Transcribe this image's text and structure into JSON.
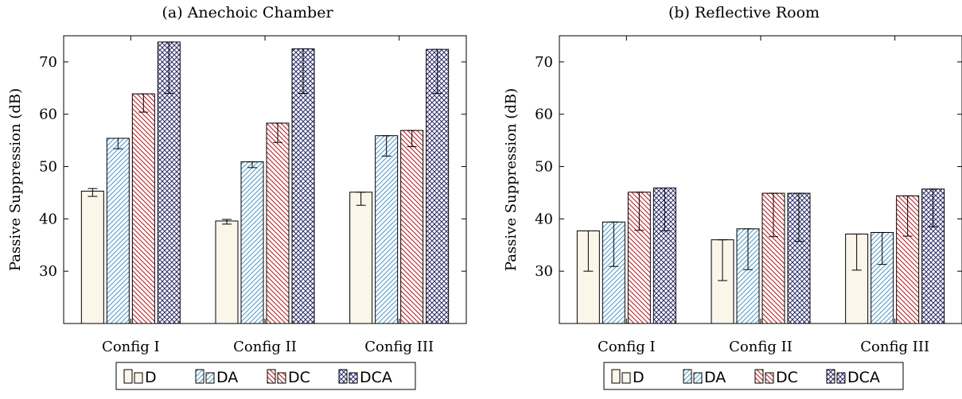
{
  "chart_data": [
    {
      "type": "bar",
      "title": "(a) Anechoic Chamber",
      "xlabel": "",
      "ylabel": "Passive Suppression (dB)",
      "ylim": [
        20,
        75
      ],
      "yticks": [
        30,
        40,
        50,
        60,
        70
      ],
      "categories": [
        "Config I",
        "Config II",
        "Config III"
      ],
      "series": [
        {
          "name": "D",
          "values": [
            45.3,
            39.6,
            45.1
          ],
          "err_low": [
            44.3,
            39.0,
            42.6
          ],
          "err_high": [
            45.8,
            39.9,
            45.1
          ],
          "fill": "#fcf5ea",
          "pattern": "vertical"
        },
        {
          "name": "DA",
          "values": [
            55.4,
            50.9,
            55.9
          ],
          "err_low": [
            53.4,
            49.8,
            52.0
          ],
          "err_high": [
            55.4,
            50.9,
            55.9
          ],
          "fill": "#4a98c9",
          "pattern": "north-east"
        },
        {
          "name": "DC",
          "values": [
            63.9,
            58.3,
            56.9
          ],
          "err_low": [
            60.4,
            54.6,
            53.8
          ],
          "err_high": [
            63.9,
            58.3,
            56.9
          ],
          "fill": "#b81f25",
          "pattern": "north-west"
        },
        {
          "name": "DCA",
          "values": [
            73.8,
            72.5,
            72.4
          ],
          "err_low": [
            64.0,
            64.0,
            64.0
          ],
          "err_high": [
            73.8,
            72.5,
            72.4
          ],
          "fill": "#2b2b6a",
          "pattern": "crosshatch"
        }
      ],
      "legend_position": "bottom",
      "grid": false
    },
    {
      "type": "bar",
      "title": "(b) Reflective Room",
      "xlabel": "",
      "ylabel": "Passive Suppression (dB)",
      "ylim": [
        20,
        75
      ],
      "yticks": [
        30,
        40,
        50,
        60,
        70
      ],
      "categories": [
        "Config I",
        "Config II",
        "Config III"
      ],
      "series": [
        {
          "name": "D",
          "values": [
            37.7,
            36.0,
            37.1
          ],
          "err_low": [
            30.0,
            28.2,
            30.2
          ],
          "err_high": [
            37.7,
            36.0,
            37.1
          ],
          "fill": "#fcf5ea",
          "pattern": "vertical"
        },
        {
          "name": "DA",
          "values": [
            39.4,
            38.1,
            37.4
          ],
          "err_low": [
            30.9,
            30.3,
            31.3
          ],
          "err_high": [
            39.4,
            38.1,
            37.4
          ],
          "fill": "#4a98c9",
          "pattern": "north-east"
        },
        {
          "name": "DC",
          "values": [
            45.1,
            44.9,
            44.4
          ],
          "err_low": [
            37.8,
            36.6,
            36.7
          ],
          "err_high": [
            45.1,
            44.9,
            44.4
          ],
          "fill": "#b81f25",
          "pattern": "north-west"
        },
        {
          "name": "DCA",
          "values": [
            45.9,
            44.9,
            45.7
          ],
          "err_low": [
            37.7,
            35.7,
            38.5
          ],
          "err_high": [
            45.9,
            44.9,
            45.7
          ],
          "fill": "#2b2b6a",
          "pattern": "crosshatch"
        }
      ],
      "legend_position": "bottom",
      "grid": false
    }
  ]
}
